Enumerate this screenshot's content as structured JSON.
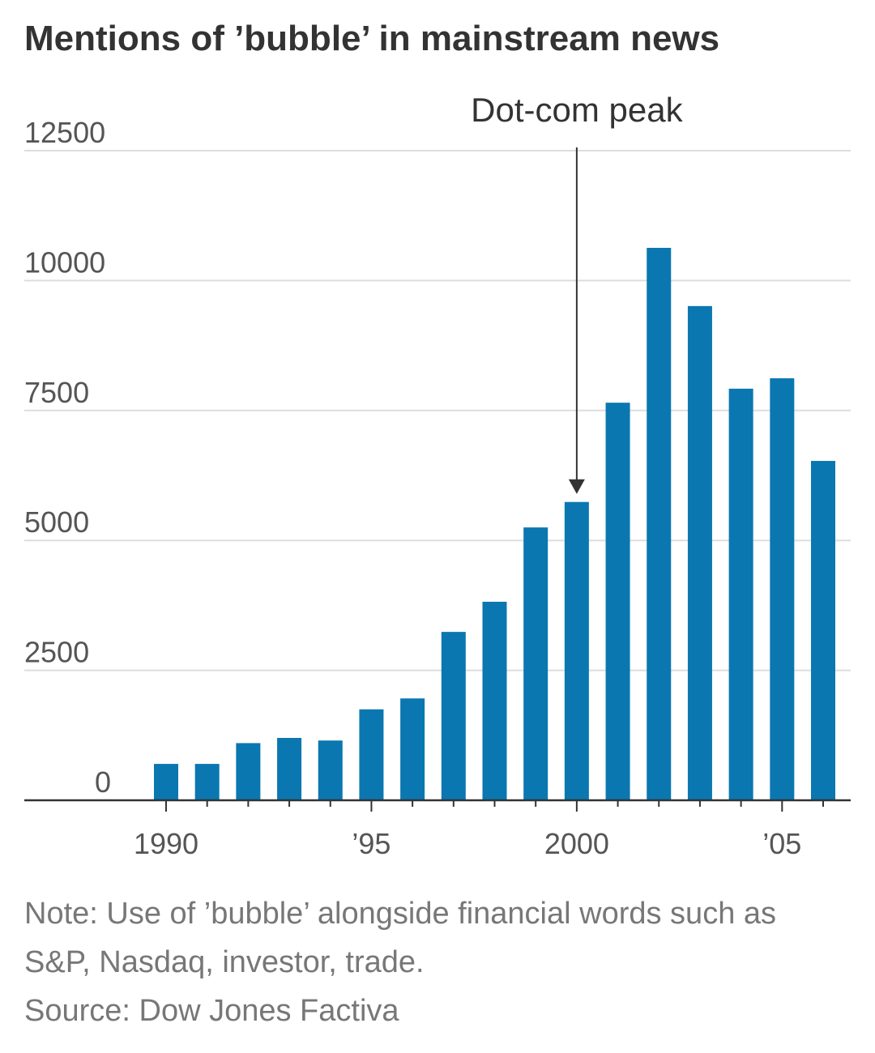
{
  "chart_data": {
    "type": "bar",
    "title": "Mentions of ’bubble’ in mainstream news",
    "annotation": {
      "text": "Dot-com peak",
      "at": "2000"
    },
    "categories": [
      "1990",
      null,
      null,
      null,
      null,
      "’95",
      null,
      null,
      null,
      null,
      "2000",
      null,
      null,
      null,
      null,
      "’05",
      null
    ],
    "values": [
      700,
      700,
      1100,
      1200,
      1150,
      1750,
      1960,
      3240,
      3820,
      5250,
      5740,
      7650,
      10630,
      9510,
      7920,
      8120,
      6530
    ],
    "color": "#0a77b0",
    "ylim": [
      0,
      12500
    ],
    "yticks": [
      0,
      2500,
      5000,
      7500,
      10000,
      12500
    ],
    "grid": true,
    "note": "Note: Use of ’bubble’ alongside financial words such as S&P, Nasdaq, investor, trade.",
    "source": "Source: Dow Jones Factiva"
  }
}
